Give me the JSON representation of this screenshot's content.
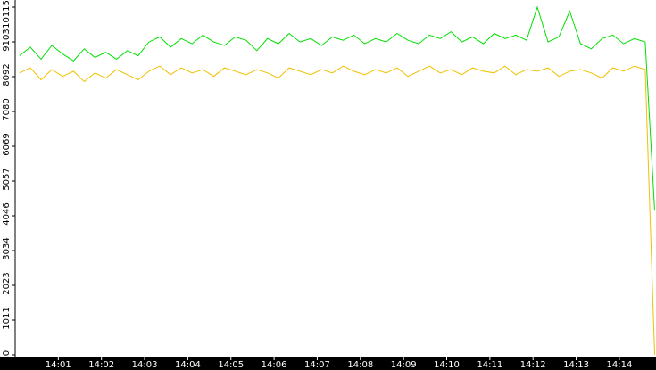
{
  "chart_data": {
    "type": "line",
    "x": [
      0.1,
      0.35,
      0.6,
      0.85,
      1.1,
      1.35,
      1.6,
      1.85,
      2.1,
      2.35,
      2.6,
      2.85,
      3.1,
      3.35,
      3.6,
      3.85,
      4.1,
      4.35,
      4.6,
      4.85,
      5.1,
      5.35,
      5.6,
      5.85,
      6.1,
      6.35,
      6.6,
      6.85,
      7.1,
      7.35,
      7.6,
      7.85,
      8.1,
      8.35,
      8.6,
      8.85,
      9.1,
      9.35,
      9.6,
      9.85,
      10.1,
      10.35,
      10.6,
      10.85,
      11.1,
      11.35,
      11.6,
      11.85,
      12.1,
      12.35,
      12.6,
      12.85,
      13.1,
      13.35,
      13.6,
      13.85,
      14.1,
      14.35,
      14.6,
      14.82
    ],
    "series": [
      {
        "color": "#00e000",
        "values": [
          8700,
          8950,
          8600,
          9000,
          8750,
          8550,
          8900,
          8650,
          8800,
          8600,
          8850,
          8700,
          9100,
          9250,
          8950,
          9200,
          9050,
          9300,
          9100,
          9000,
          9250,
          9150,
          8850,
          9200,
          9050,
          9350,
          9100,
          9200,
          9000,
          9250,
          9150,
          9300,
          9050,
          9200,
          9100,
          9350,
          9150,
          9050,
          9300,
          9200,
          9400,
          9100,
          9250,
          9050,
          9350,
          9200,
          9300,
          9150,
          10115,
          9100,
          9250,
          10000,
          9050,
          8900,
          9200,
          9300,
          9050,
          9200,
          9100,
          4200
        ]
      },
      {
        "color": "#f0c000",
        "values": [
          8200,
          8350,
          8000,
          8300,
          8100,
          8250,
          7950,
          8200,
          8050,
          8300,
          8150,
          8000,
          8250,
          8400,
          8150,
          8350,
          8200,
          8300,
          8100,
          8350,
          8250,
          8150,
          8300,
          8200,
          8050,
          8350,
          8250,
          8150,
          8300,
          8200,
          8400,
          8250,
          8150,
          8300,
          8200,
          8350,
          8100,
          8250,
          8400,
          8200,
          8300,
          8150,
          8350,
          8250,
          8200,
          8400,
          8150,
          8300,
          8250,
          8350,
          8100,
          8250,
          8300,
          8200,
          8050,
          8350,
          8250,
          8400,
          8300,
          0
        ]
      }
    ],
    "xlim": [
      0,
      14.85
    ],
    "ylim": [
      0,
      10115
    ],
    "yticks": [
      0,
      1011,
      2023,
      3034,
      4046,
      5057,
      6069,
      7080,
      8092,
      9103,
      10115
    ],
    "xticks": [
      {
        "value": 1,
        "label": "14:01"
      },
      {
        "value": 2,
        "label": "14:02"
      },
      {
        "value": 3,
        "label": "14:03"
      },
      {
        "value": 4,
        "label": "14:04"
      },
      {
        "value": 5,
        "label": "14:05"
      },
      {
        "value": 6,
        "label": "14:06"
      },
      {
        "value": 7,
        "label": "14:07"
      },
      {
        "value": 8,
        "label": "14:08"
      },
      {
        "value": 9,
        "label": "14:09"
      },
      {
        "value": 10,
        "label": "14:10"
      },
      {
        "value": 11,
        "label": "14:11"
      },
      {
        "value": 12,
        "label": "14:12"
      },
      {
        "value": 13,
        "label": "14:13"
      },
      {
        "value": 14,
        "label": "14:14"
      }
    ]
  }
}
